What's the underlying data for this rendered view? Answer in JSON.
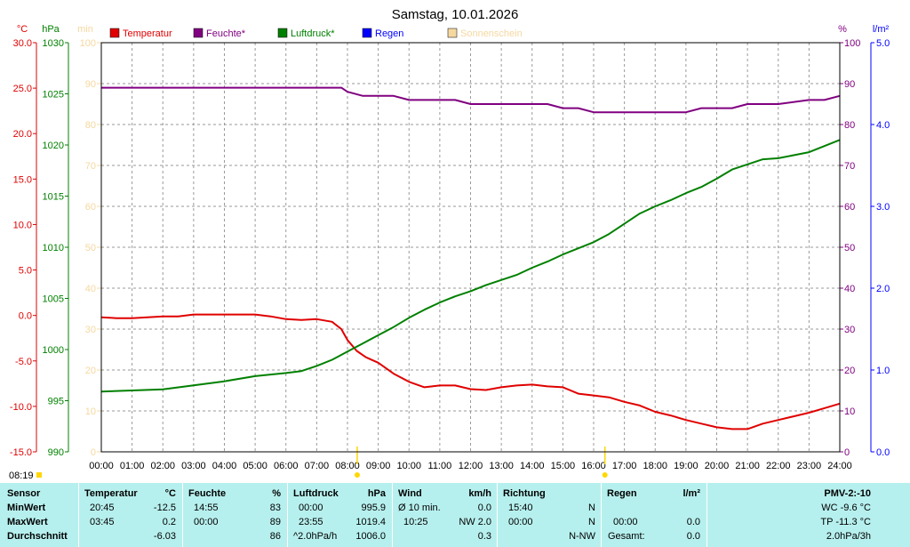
{
  "title": "Samstag, 10.01.2026",
  "axes": {
    "temp_unit": "°C",
    "press_unit": "hPa",
    "sun_unit": "min",
    "hum_unit": "%",
    "rain_unit": "l/m²",
    "temp_ticks": [
      "30.0",
      "25.0",
      "20.0",
      "15.0",
      "10.0",
      "5.0",
      "0.0",
      "-5.0",
      "-10.0",
      "-15.0"
    ],
    "press_ticks": [
      "1030",
      "1025",
      "1020",
      "1015",
      "1010",
      "1005",
      "1000",
      "995",
      "990"
    ],
    "sun_ticks": [
      "100",
      "90",
      "80",
      "70",
      "60",
      "50",
      "40",
      "30",
      "20",
      "10",
      "0"
    ],
    "hum_ticks": [
      "100",
      "90",
      "80",
      "70",
      "60",
      "50",
      "40",
      "30",
      "20",
      "10",
      "0"
    ],
    "rain_ticks": [
      "5.0",
      "4.0",
      "3.0",
      "2.0",
      "1.0",
      "0.0"
    ],
    "x_ticks": [
      "00:00",
      "01:00",
      "02:00",
      "03:00",
      "04:00",
      "05:00",
      "06:00",
      "07:00",
      "08:00",
      "09:00",
      "10:00",
      "11:00",
      "12:00",
      "13:00",
      "14:00",
      "15:00",
      "16:00",
      "17:00",
      "18:00",
      "19:00",
      "20:00",
      "21:00",
      "22:00",
      "23:00",
      "24:00"
    ],
    "sunrise": "08:19"
  },
  "legend": [
    {
      "label": "Temperatur",
      "color": "#e00000"
    },
    {
      "label": "Feuchte*",
      "color": "#800080"
    },
    {
      "label": "Luftdruck*",
      "color": "#008000"
    },
    {
      "label": "Regen",
      "color": "#0000ff"
    },
    {
      "label": "Sonnenschein",
      "color": "#f5d8a0"
    }
  ],
  "colors": {
    "temp": "#e00000",
    "hum": "#800080",
    "press": "#008000",
    "rain": "#0000ff",
    "sun": "#f5d8a0",
    "sun_marker": "#ffd700",
    "panel": "#b6f0ee"
  },
  "chart_data": {
    "type": "line",
    "title": "Samstag, 10.01.2026",
    "x_range": [
      "00:00",
      "24:00"
    ],
    "series": [
      {
        "name": "Temperatur",
        "axis": "°C",
        "ylim": [
          -15,
          30
        ],
        "x": [
          0,
          0.5,
          1,
          1.5,
          2,
          2.5,
          3,
          4,
          5,
          5.5,
          6,
          6.5,
          7,
          7.5,
          7.8,
          8,
          8.3,
          8.6,
          9,
          9.5,
          10,
          10.5,
          11,
          11.5,
          12,
          12.5,
          13,
          13.5,
          14,
          14.5,
          15,
          15.5,
          16,
          16.5,
          17,
          17.5,
          18,
          18.5,
          19,
          19.5,
          20,
          20.5,
          21,
          21.5,
          22,
          22.5,
          23,
          23.5,
          24
        ],
        "y": [
          -0.2,
          -0.3,
          -0.3,
          -0.2,
          -0.1,
          -0.1,
          0.1,
          0.1,
          0.1,
          -0.1,
          -0.4,
          -0.5,
          -0.4,
          -0.7,
          -1.5,
          -2.7,
          -3.9,
          -4.6,
          -5.2,
          -6.4,
          -7.3,
          -7.9,
          -7.7,
          -7.7,
          -8.1,
          -8.2,
          -7.9,
          -7.7,
          -7.6,
          -7.8,
          -7.9,
          -8.6,
          -8.8,
          -9.0,
          -9.5,
          -9.9,
          -10.6,
          -11.0,
          -11.5,
          -11.9,
          -12.3,
          -12.5,
          -12.5,
          -11.9,
          -11.5,
          -11.1,
          -10.7,
          -10.2,
          -9.7
        ]
      },
      {
        "name": "Feuchte*",
        "axis": "%",
        "ylim": [
          0,
          100
        ],
        "x": [
          0,
          1,
          2,
          3,
          4,
          5,
          6,
          7,
          7.8,
          8,
          8.5,
          9,
          9.5,
          10,
          11,
          11.5,
          12,
          12.5,
          13,
          14,
          14.5,
          15,
          15.5,
          16,
          17,
          18,
          18.5,
          19,
          19.5,
          20,
          20.5,
          21,
          21.5,
          22,
          23,
          23.5,
          24
        ],
        "y": [
          89,
          89,
          89,
          89,
          89,
          89,
          89,
          89,
          89,
          88,
          87,
          87,
          87,
          86,
          86,
          86,
          85,
          85,
          85,
          85,
          85,
          84,
          84,
          83,
          83,
          83,
          83,
          83,
          84,
          84,
          84,
          85,
          85,
          85,
          86,
          86,
          87
        ]
      },
      {
        "name": "Luftdruck*",
        "axis": "hPa",
        "ylim": [
          990,
          1030
        ],
        "x": [
          0,
          1,
          2,
          3,
          4,
          5,
          6,
          6.5,
          7,
          7.5,
          8,
          8.5,
          9,
          9.5,
          10,
          10.5,
          11,
          11.5,
          12,
          12.5,
          13,
          13.5,
          14,
          14.5,
          15,
          15.5,
          16,
          16.5,
          17,
          17.5,
          18,
          18.5,
          19,
          19.5,
          20,
          20.5,
          21,
          21.5,
          22,
          22.5,
          23,
          23.5,
          24
        ],
        "y": [
          995.9,
          996.0,
          996.1,
          996.5,
          996.9,
          997.4,
          997.7,
          997.9,
          998.4,
          999.0,
          999.8,
          1000.6,
          1001.4,
          1002.2,
          1003.1,
          1003.9,
          1004.6,
          1005.2,
          1005.7,
          1006.3,
          1006.8,
          1007.3,
          1008.0,
          1008.6,
          1009.3,
          1009.9,
          1010.5,
          1011.3,
          1012.3,
          1013.3,
          1014.0,
          1014.6,
          1015.3,
          1015.9,
          1016.7,
          1017.6,
          1018.1,
          1018.6,
          1018.7,
          1019.0,
          1019.3,
          1019.9,
          1020.5
        ]
      }
    ]
  },
  "stats": {
    "headers": {
      "sensor": "Sensor",
      "temp": "Temperatur",
      "temp_unit": "°C",
      "hum": "Feuchte",
      "hum_unit": "%",
      "press": "Luftdruck",
      "press_unit": "hPa",
      "wind": "Wind",
      "wind_unit": "km/h",
      "dir": "Richtung",
      "rain": "Regen",
      "rain_unit": "l/m²",
      "pmv": "PMV-2:-10"
    },
    "rows": [
      {
        "label": "MinWert",
        "temp_time": "20:45",
        "temp_val": "-12.5",
        "hum_time": "14:55",
        "hum_val": "83",
        "press_time": "00:00",
        "press_val": "995.9",
        "wind_desc": "Ø 10 min.",
        "wind_val": "0.0",
        "dir_time": "15:40",
        "dir_val": "N",
        "rain_time": "",
        "rain_val": "",
        "pmv": "WC -9.6 °C"
      },
      {
        "label": "MaxWert",
        "temp_time": "03:45",
        "temp_val": "0.2",
        "hum_time": "00:00",
        "hum_val": "89",
        "press_time": "23:55",
        "press_val": "1019.4",
        "wind_desc": "10:25",
        "wind_val": "NW 2.0",
        "dir_time": "00:00",
        "dir_val": "N",
        "rain_time": "00:00",
        "rain_val": "0.0",
        "pmv": "TP -11.3 °C"
      },
      {
        "label": "Durchschnitt",
        "temp_time": "",
        "temp_val": "-6.03",
        "hum_time": "",
        "hum_val": "86",
        "press_time": "^2.0hPa/h",
        "press_val": "1006.0",
        "wind_desc": "",
        "wind_val": "0.3",
        "dir_time": "",
        "dir_val": "N-NW",
        "rain_time": "Gesamt:",
        "rain_val": "0.0",
        "pmv": "2.0hPa/3h"
      }
    ]
  }
}
